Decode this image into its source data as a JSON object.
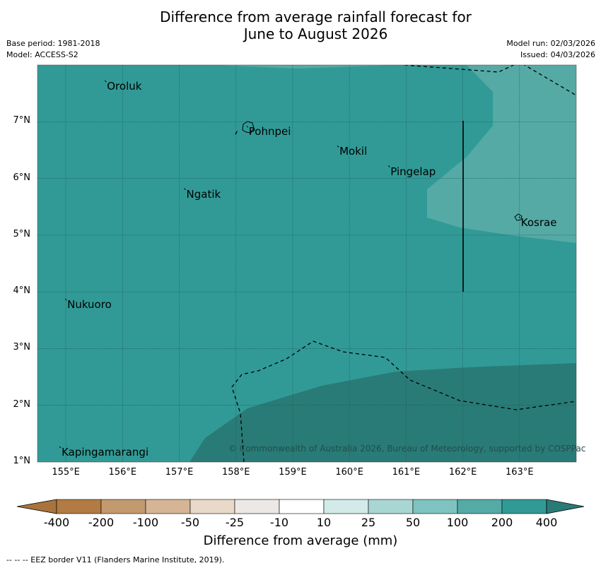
{
  "title": {
    "line1": "Difference from average rainfall forecast for",
    "line2": "June to August 2026"
  },
  "meta": {
    "base_period": "Base period: 1981-2018",
    "model": "Model: ACCESS-S2",
    "model_run": "Model run: 02/03/2026",
    "issued": "Issued: 04/03/2026"
  },
  "map": {
    "lon_range": [
      154.5,
      164.0
    ],
    "lat_range": [
      1.0,
      8.0
    ],
    "x_ticks": [
      "155°E",
      "156°E",
      "157°E",
      "158°E",
      "159°E",
      "160°E",
      "161°E",
      "162°E",
      "163°E"
    ],
    "y_ticks": [
      "1°N",
      "2°N",
      "3°N",
      "4°N",
      "5°N",
      "6°N",
      "7°N"
    ],
    "islands": [
      {
        "name": "Oroluk",
        "lon": 155.7,
        "lat": 7.7
      },
      {
        "name": "Pohnpei",
        "lon": 158.2,
        "lat": 6.9
      },
      {
        "name": "Mokil",
        "lon": 159.8,
        "lat": 6.55
      },
      {
        "name": "Pingelap",
        "lon": 160.7,
        "lat": 6.2
      },
      {
        "name": "Ngatik",
        "lon": 157.1,
        "lat": 5.8
      },
      {
        "name": "Kosrae",
        "lon": 163.0,
        "lat": 5.3
      },
      {
        "name": "Nukuoro",
        "lon": 155.0,
        "lat": 3.85
      },
      {
        "name": "Kapingamarangi",
        "lon": 154.9,
        "lat": 1.25
      }
    ],
    "copyright": "© Commonwealth of Australia 2026, Bureau of Meteorology, supported by COSPPac",
    "colors": {
      "band_100_200": "#55aaa5",
      "band_200_400": "#319a96",
      "band_over_400": "#297b77"
    }
  },
  "colorbar": {
    "labels": [
      "-400",
      "-200",
      "-100",
      "-50",
      "-25",
      "-10",
      "10",
      "25",
      "50",
      "100",
      "200",
      "400"
    ],
    "colors": [
      "#a9733b",
      "#b17b43",
      "#c39a70",
      "#d5b596",
      "#e8d9c9",
      "#ece8e5",
      "#ffffff",
      "#d3ebe8",
      "#a8d6d3",
      "#7ec3c0",
      "#55aaa5",
      "#319a96",
      "#297b77"
    ],
    "title": "Difference from average (mm)"
  },
  "footnote": "-- -- -- EEZ border V11 (Flanders Marine Institute, 2019)."
}
